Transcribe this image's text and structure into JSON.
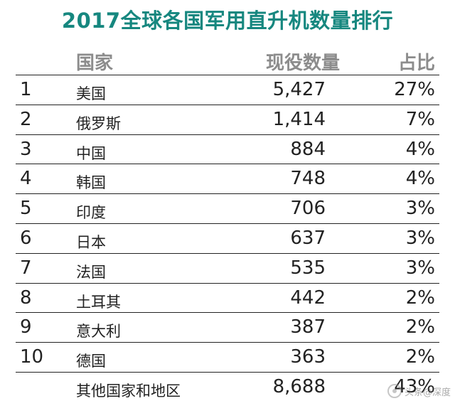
{
  "title": "2017全球各国军用直升机数量排行",
  "header": {
    "country": "国家",
    "count": "现役数量",
    "ratio": "占比"
  },
  "rows": [
    {
      "rank": "1",
      "country": "美国",
      "count": "5,427",
      "ratio": "27%"
    },
    {
      "rank": "2",
      "country": "俄罗斯",
      "count": "1,414",
      "ratio": "7%"
    },
    {
      "rank": "3",
      "country": "中国",
      "count": "884",
      "ratio": "4%"
    },
    {
      "rank": "4",
      "country": "韩国",
      "count": "748",
      "ratio": "4%"
    },
    {
      "rank": "5",
      "country": "印度",
      "count": "706",
      "ratio": "3%"
    },
    {
      "rank": "6",
      "country": "日本",
      "count": "637",
      "ratio": "3%"
    },
    {
      "rank": "7",
      "country": "法国",
      "count": "535",
      "ratio": "3%"
    },
    {
      "rank": "8",
      "country": "土耳其",
      "count": "442",
      "ratio": "2%"
    },
    {
      "rank": "9",
      "country": "意大利",
      "count": "387",
      "ratio": "2%"
    },
    {
      "rank": "10",
      "country": "德国",
      "count": "363",
      "ratio": "2%"
    },
    {
      "rank": "",
      "country": "其他国家和地区",
      "count": "8,688",
      "ratio": "43%"
    }
  ],
  "watermark": "头条@深度"
}
